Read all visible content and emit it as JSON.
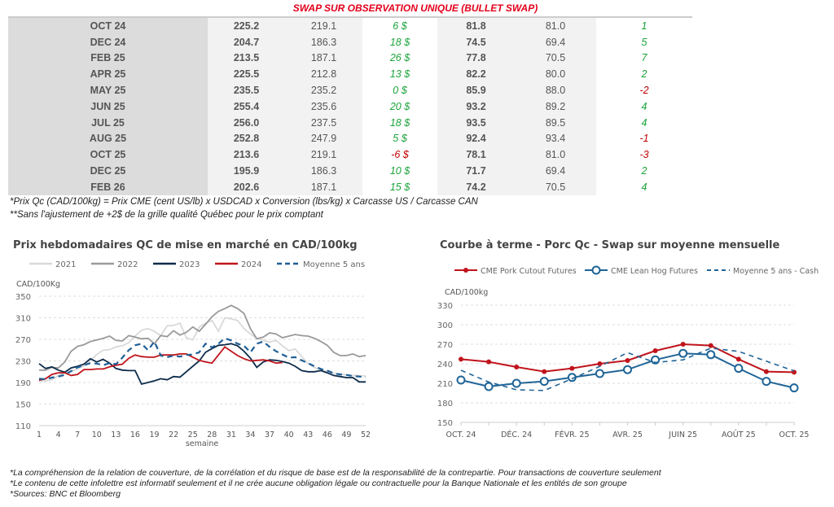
{
  "table": {
    "title": "SWAP SUR OBSERVATION UNIQUE (BULLET SWAP)",
    "rows": [
      [
        "OCT 24",
        "225.2",
        "219.1",
        "6 $",
        "81.8",
        "81.0",
        "1"
      ],
      [
        "DEC 24",
        "204.7",
        "186.3",
        "18 $",
        "74.5",
        "69.4",
        "5"
      ],
      [
        "FEB 25",
        "213.5",
        "187.1",
        "26 $",
        "77.8",
        "70.5",
        "7"
      ],
      [
        "APR 25",
        "225.5",
        "212.8",
        "13 $",
        "82.2",
        "80.0",
        "2"
      ],
      [
        "MAY 25",
        "235.5",
        "235.2",
        "0 $",
        "85.9",
        "88.0",
        "-2"
      ],
      [
        "JUN 25",
        "255.4",
        "235.6",
        "20 $",
        "93.2",
        "89.2",
        "4"
      ],
      [
        "JUL 25",
        "256.0",
        "237.5",
        "18 $",
        "93.5",
        "89.5",
        "4"
      ],
      [
        "AUG 25",
        "252.8",
        "247.9",
        "5 $",
        "92.4",
        "93.4",
        "-1"
      ],
      [
        "OCT 25",
        "213.6",
        "219.1",
        "-6 $",
        "78.1",
        "81.0",
        "-3"
      ],
      [
        "DEC 25",
        "195.9",
        "186.3",
        "10 $",
        "71.7",
        "69.4",
        "2"
      ],
      [
        "FEB 26",
        "202.6",
        "187.1",
        "15 $",
        "74.2",
        "70.5",
        "4"
      ]
    ],
    "notes": [
      "*Prix Qc (CAD/100kg) = Prix CME (cent US/lb) x USDCAD x Conversion (lbs/kg) x Carcasse US / Carcasse CAN",
      "**Sans l'ajustement de +2$ de la grille qualité Québec pour le prix comptant"
    ]
  },
  "colors": {
    "positive": "#1aa33a",
    "negative": "#c00000",
    "title": "#e3001b"
  },
  "chart_data": [
    {
      "type": "line",
      "title": "Prix hebdomadaires QC de mise en marché en CAD/100kg",
      "ylabel": "CAD/100Kg",
      "xlabel": "semaine",
      "ylim": [
        110,
        350
      ],
      "yticks": [
        110,
        150,
        190,
        230,
        270,
        310,
        350
      ],
      "xticks": [
        1,
        4,
        7,
        10,
        13,
        16,
        19,
        22,
        25,
        28,
        31,
        34,
        37,
        40,
        43,
        46,
        49,
        52
      ],
      "grid": "horizontal dashed",
      "legend": "top",
      "series": [
        {
          "name": "2021",
          "color": "#d9d9d9",
          "dash": false,
          "values": [
            193,
            193,
            195,
            203,
            208,
            211,
            215,
            221,
            231,
            242,
            250,
            251,
            256,
            258,
            264,
            276,
            287,
            290,
            285,
            277,
            295,
            296,
            300,
            273,
            269,
            293,
            300,
            305,
            285,
            310,
            308,
            305,
            290,
            280,
            272,
            268,
            265,
            268,
            258,
            249,
            252,
            238,
            225,
            218,
            212,
            211,
            207,
            206,
            204,
            203,
            203,
            202
          ]
        },
        {
          "name": "2022",
          "color": "#9a9a9a",
          "dash": false,
          "values": [
            213,
            213,
            218,
            217,
            228,
            248,
            257,
            260,
            266,
            269,
            272,
            276,
            268,
            267,
            277,
            274,
            271,
            272,
            262,
            277,
            275,
            286,
            278,
            283,
            293,
            285,
            298,
            312,
            322,
            327,
            333,
            327,
            318,
            290,
            271,
            274,
            282,
            280,
            273,
            276,
            279,
            277,
            276,
            272,
            266,
            259,
            246,
            240,
            240,
            243,
            238,
            240
          ]
        },
        {
          "name": "2023",
          "color": "#0d2b4a",
          "dash": false,
          "values": [
            225,
            216,
            219,
            213,
            209,
            217,
            220,
            224,
            234,
            228,
            233,
            226,
            216,
            213,
            212,
            212,
            187,
            190,
            193,
            197,
            195,
            201,
            200,
            210,
            220,
            230,
            246,
            253,
            259,
            260,
            262,
            258,
            248,
            235,
            218,
            228,
            232,
            231,
            229,
            226,
            220,
            212,
            210,
            210,
            212,
            208,
            203,
            201,
            199,
            199,
            191,
            191
          ]
        },
        {
          "name": "2024",
          "color": "#c0141c",
          "dash": false,
          "values": [
            194,
            197,
            205,
            208,
            208,
            203,
            205,
            214,
            214,
            215,
            215,
            219,
            222,
            224,
            235,
            241,
            238,
            237,
            237,
            241,
            241,
            241,
            243,
            243,
            237,
            231,
            228,
            226,
            241,
            256,
            248,
            240,
            234,
            230,
            231,
            232,
            230,
            226,
            227
          ]
        },
        {
          "name": "Moyenne 5 ans",
          "color": "#1f5f96",
          "dash": true,
          "values": [
            197,
            196,
            199,
            201,
            204,
            211,
            218,
            222,
            226,
            225,
            222,
            226,
            224,
            236,
            250,
            259,
            262,
            250,
            266,
            240,
            237,
            240,
            238,
            241,
            242,
            246,
            262,
            255,
            262,
            272,
            268,
            262,
            258,
            246,
            262,
            266,
            256,
            248,
            242,
            236,
            237,
            231,
            226,
            220,
            215,
            212,
            207,
            205,
            204,
            202,
            201,
            200
          ]
        }
      ]
    },
    {
      "type": "line",
      "title": "Courbe à terme - Porc Qc - Swap sur moyenne mensuelle",
      "ylabel": "CAD/100kg",
      "ylim": [
        150,
        330
      ],
      "yticks": [
        150,
        180,
        210,
        240,
        270,
        300,
        330
      ],
      "categories": [
        "OCT. 24",
        "NOV. 24",
        "DÉC. 24",
        "JANV. 25",
        "FÉVR. 25",
        "MARS 25",
        "AVR. 25",
        "MAI 25",
        "JUIN 25",
        "JUIL. 25",
        "AOÛT 25",
        "SEPT. 25",
        "OCT. 25"
      ],
      "tick_labels": [
        "OCT. 24",
        "DÉC. 24",
        "FÉVR. 25",
        "AVR. 25",
        "JUIN 25",
        "AOÛT 25",
        "OCT. 25"
      ],
      "grid": "horizontal dashed",
      "legend": "top",
      "series": [
        {
          "name": "CME Pork Cutout Futures",
          "color": "#c0141c",
          "marker": "dot",
          "values": [
            247,
            243,
            235,
            228,
            233,
            240,
            245,
            260,
            270,
            268,
            247,
            228,
            227
          ]
        },
        {
          "name": "CME Lean Hog Futures",
          "color": "#1f6497",
          "marker": "open-circle",
          "values": [
            215,
            205,
            210,
            213,
            219,
            225,
            231,
            246,
            256,
            254,
            233,
            213,
            203
          ]
        },
        {
          "name": "Moyenne 5 ans - Cash",
          "color": "#1f6497",
          "marker": "none",
          "dash": true,
          "values": [
            230,
            212,
            200,
            199,
            217,
            236,
            257,
            242,
            246,
            264,
            259,
            244,
            229
          ]
        }
      ]
    }
  ],
  "footer": [
    "*La compréhension de la relation de couverture, de la corrélation et du risque de base est de la responsabilité de la contrepartie. Pour transactions de couverture seulement",
    "*Le contenu de cette infolettre est informatif seulement et il ne crée aucune obligation légale ou contractuelle pour la Banque Nationale et les entités de son groupe",
    "*Sources: BNC et Bloomberg"
  ]
}
